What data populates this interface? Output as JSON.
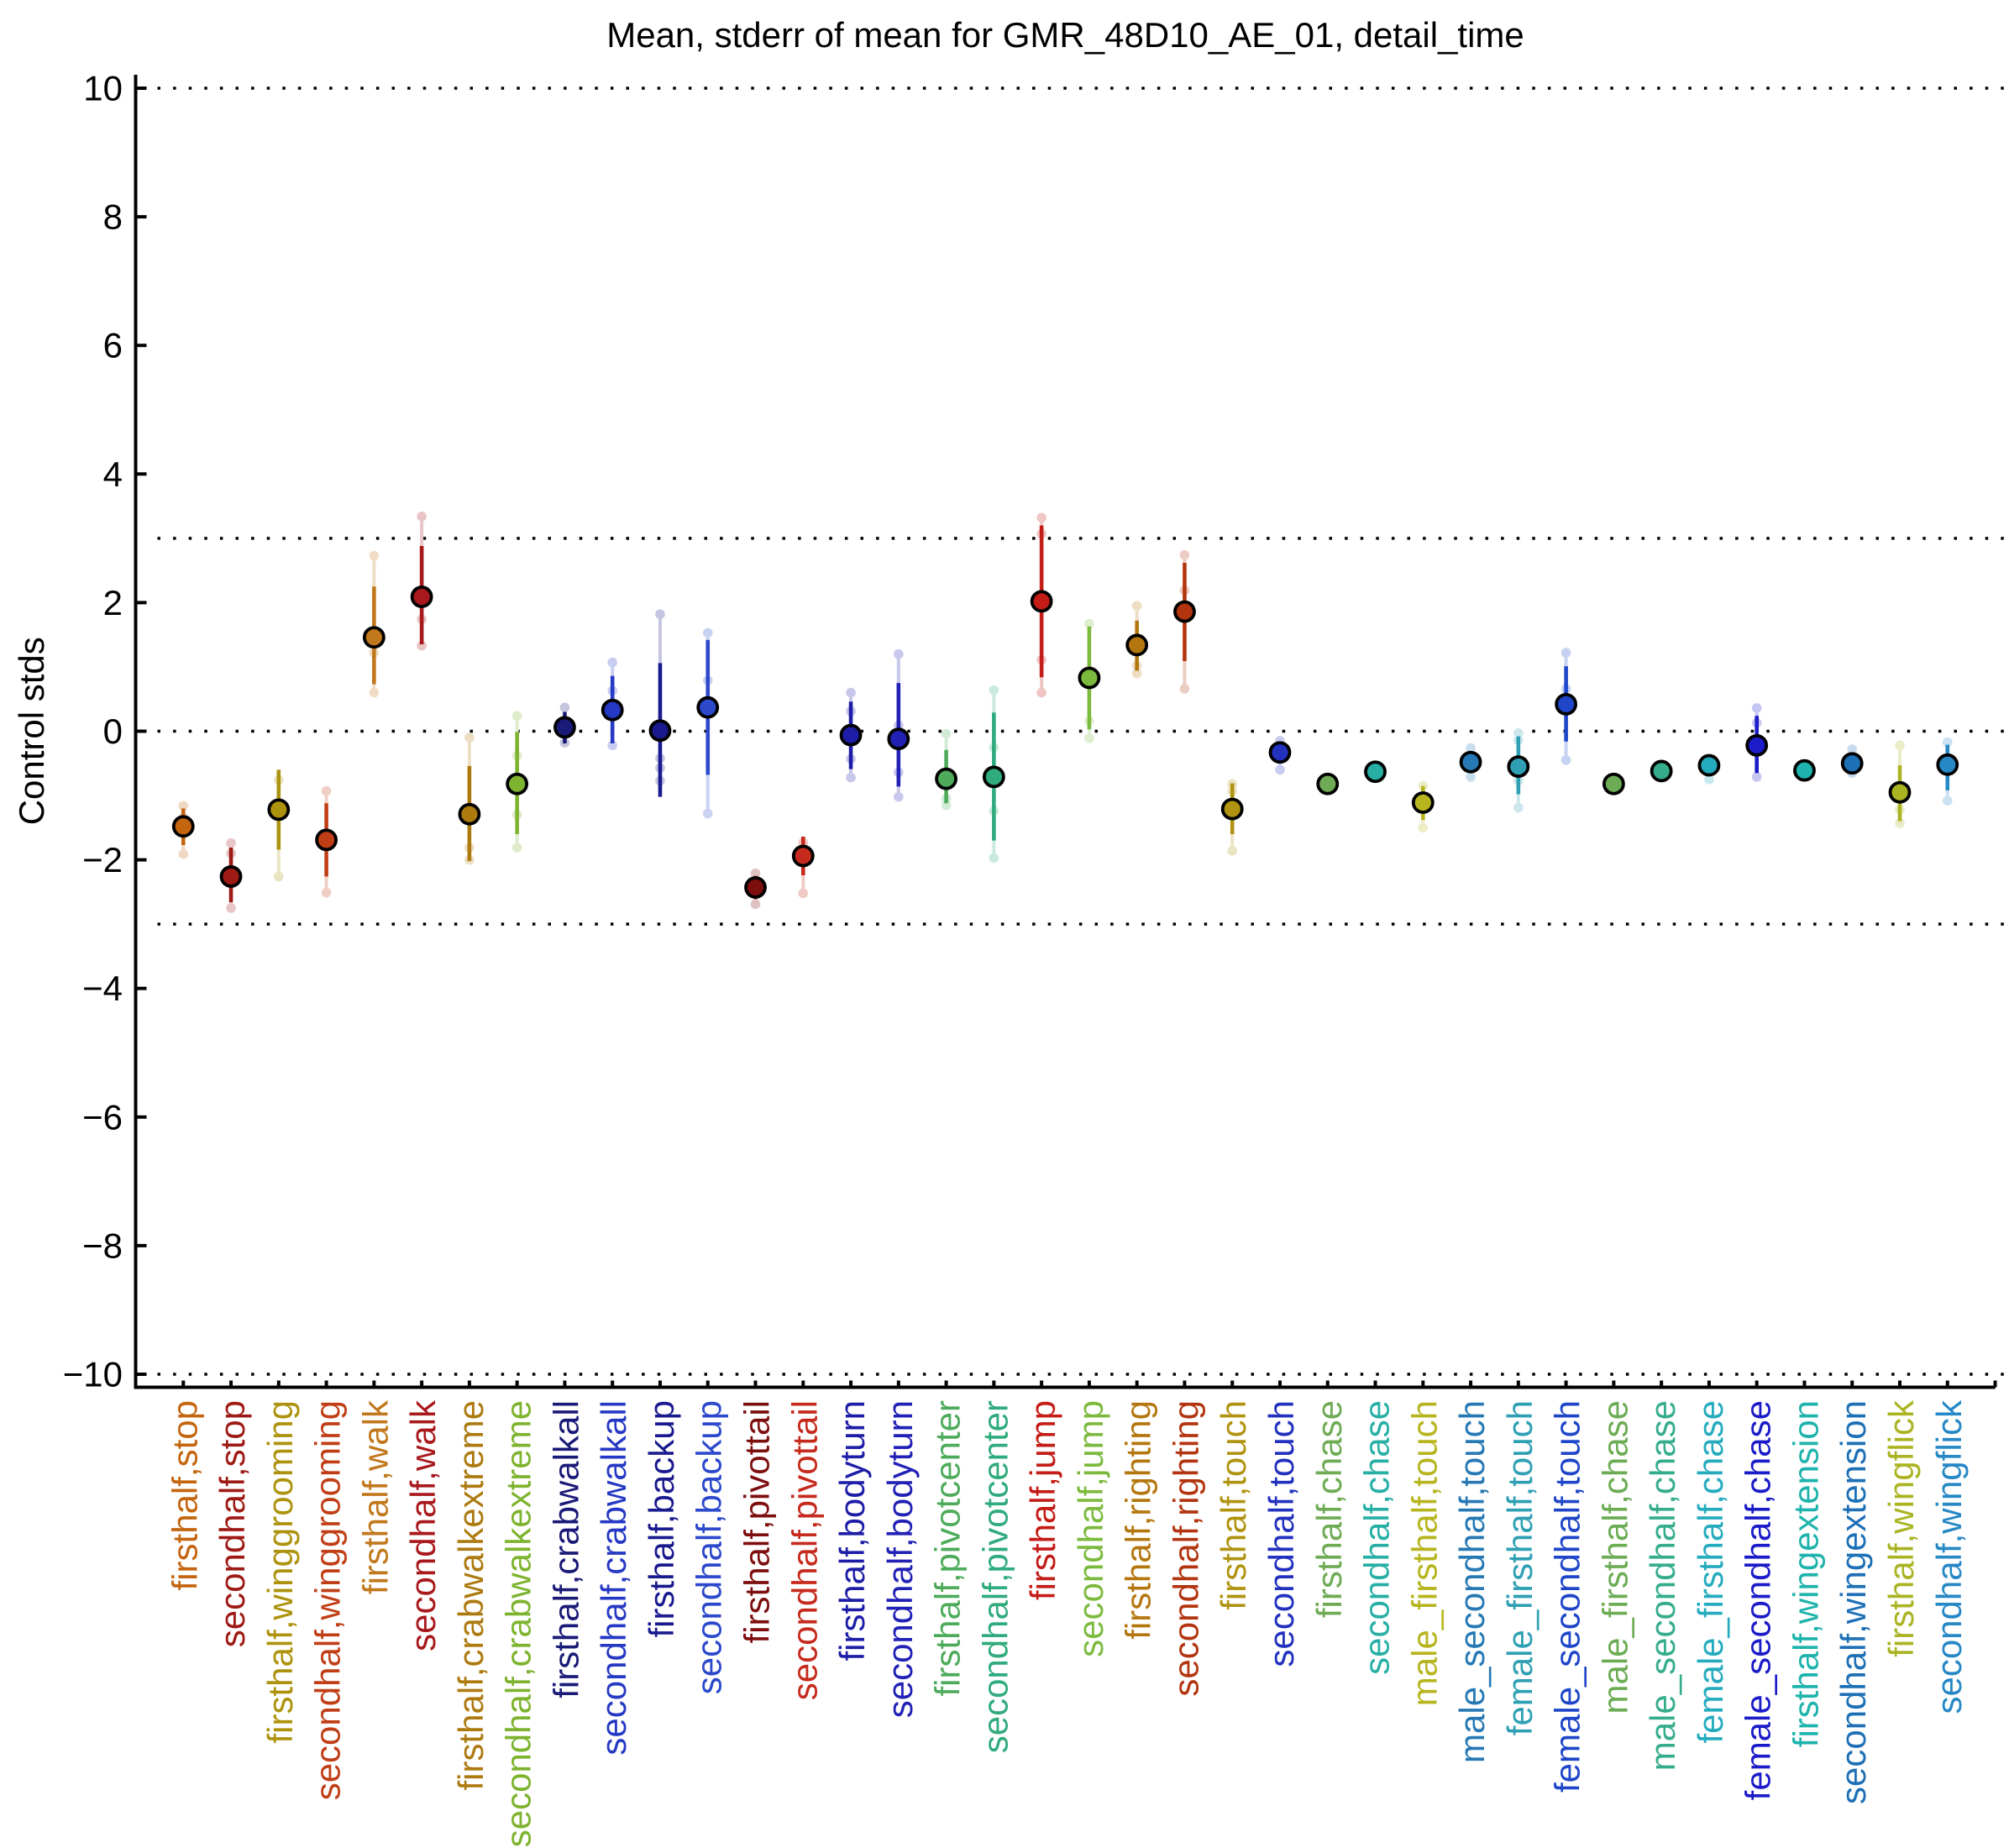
{
  "chart_data": {
    "type": "scatter",
    "title": "Mean, stderr of mean for GMR_48D10_AE_01, detail_time",
    "xlabel": "",
    "ylabel": "Control stds",
    "ylim": [
      -10.2,
      10.2
    ],
    "yticks": [
      -10,
      -8,
      -6,
      -4,
      -2,
      0,
      2,
      4,
      6,
      8,
      10
    ],
    "ytick_labels": [
      "−10",
      "−8",
      "−6",
      "−4",
      "−2",
      "0",
      "2",
      "4",
      "6",
      "8",
      "10"
    ],
    "grid_y_values": [
      10,
      3,
      0,
      -3,
      -10
    ],
    "grid_style": "dotted",
    "legend": "none",
    "axis_color": "#000000",
    "background_color": "#ffffff",
    "marker_edge_color": "#000000",
    "series_note": "Each category shows: big dot = mean, thick line = mean +/- stderr of mean, pale line and pale small dots = per-set means range",
    "categories": [
      {
        "label": "firsthalf,stop",
        "color": "#C4650F",
        "mean": -1.48,
        "stderr_hi": -1.2,
        "stderr_lo": -1.77,
        "ext_hi": -1.16,
        "ext_lo": -1.91,
        "set_means": [
          -1.16,
          -1.34,
          -1.91
        ]
      },
      {
        "label": "secondhalf,stop",
        "color": "#9E1A15",
        "mean": -2.26,
        "stderr_hi": -1.81,
        "stderr_lo": -2.66,
        "ext_hi": -1.74,
        "ext_lo": -2.75,
        "set_means": [
          -1.74,
          -1.9,
          -2.75
        ]
      },
      {
        "label": "firsthalf,winggrooming",
        "color": "#AD930D",
        "mean": -1.22,
        "stderr_hi": -0.6,
        "stderr_lo": -1.84,
        "ext_hi": -0.76,
        "ext_lo": -2.26,
        "set_means": [
          -0.76,
          -2.26
        ]
      },
      {
        "label": "secondhalf,winggrooming",
        "color": "#C03E16",
        "mean": -1.69,
        "stderr_hi": -1.12,
        "stderr_lo": -2.26,
        "ext_hi": -0.93,
        "ext_lo": -2.51,
        "set_means": [
          -0.93,
          -2.51
        ]
      },
      {
        "label": "firsthalf,walk",
        "color": "#C1771B",
        "mean": 1.46,
        "stderr_hi": 2.25,
        "stderr_lo": 0.73,
        "ext_hi": 2.73,
        "ext_lo": 0.6,
        "set_means": [
          2.73,
          1.22,
          0.6
        ]
      },
      {
        "label": "secondhalf,walk",
        "color": "#A8181C",
        "mean": 2.09,
        "stderr_hi": 2.88,
        "stderr_lo": 1.35,
        "ext_hi": 3.34,
        "ext_lo": 1.33,
        "set_means": [
          3.34,
          1.74,
          1.33
        ]
      },
      {
        "label": "firsthalf,crabwalkextreme",
        "color": "#AD7A10",
        "mean": -1.29,
        "stderr_hi": -0.54,
        "stderr_lo": -2.02,
        "ext_hi": -0.1,
        "ext_lo": -2.0,
        "set_means": [
          -0.1,
          -1.81,
          -2.0
        ]
      },
      {
        "label": "secondhalf,crabwalkextreme",
        "color": "#7DB32E",
        "mean": -0.82,
        "stderr_hi": -0.01,
        "stderr_lo": -1.6,
        "ext_hi": 0.24,
        "ext_lo": -1.81,
        "set_means": [
          0.24,
          -0.38,
          -1.3,
          -1.81
        ]
      },
      {
        "label": "firsthalf,crabwalkall",
        "color": "#1A1A78",
        "mean": 0.06,
        "stderr_hi": 0.3,
        "stderr_lo": -0.19,
        "ext_hi": 0.37,
        "ext_lo": -0.18,
        "set_means": [
          0.37,
          -0.18
        ]
      },
      {
        "label": "secondhalf,crabwalkall",
        "color": "#2639C4",
        "mean": 0.33,
        "stderr_hi": 0.86,
        "stderr_lo": -0.19,
        "ext_hi": 1.07,
        "ext_lo": -0.22,
        "set_means": [
          1.07,
          0.63,
          -0.22
        ]
      },
      {
        "label": "firsthalf,backup",
        "color": "#1A1A8F",
        "mean": 0.01,
        "stderr_hi": 1.06,
        "stderr_lo": -1.02,
        "ext_hi": 1.82,
        "ext_lo": -0.77,
        "set_means": [
          1.82,
          -0.42,
          -0.57,
          -0.77
        ]
      },
      {
        "label": "secondhalf,backup",
        "color": "#2C49CC",
        "mean": 0.37,
        "stderr_hi": 1.42,
        "stderr_lo": -0.68,
        "ext_hi": 1.53,
        "ext_lo": -1.28,
        "set_means": [
          1.53,
          0.79,
          -1.28
        ]
      },
      {
        "label": "firsthalf,pivottail",
        "color": "#7D0E0E",
        "mean": -2.43,
        "stderr_hi": -2.25,
        "stderr_lo": -2.61,
        "ext_hi": -2.21,
        "ext_lo": -2.69,
        "set_means": [
          -2.21,
          -2.69
        ]
      },
      {
        "label": "secondhalf,pivottail",
        "color": "#C52A1C",
        "mean": -1.94,
        "stderr_hi": -1.64,
        "stderr_lo": -2.24,
        "ext_hi": -1.73,
        "ext_lo": -2.52,
        "set_means": [
          -1.73,
          -2.52
        ]
      },
      {
        "label": "firsthalf,bodyturn",
        "color": "#1D1DA8",
        "mean": -0.06,
        "stderr_hi": 0.46,
        "stderr_lo": -0.59,
        "ext_hi": 0.6,
        "ext_lo": -0.72,
        "set_means": [
          0.6,
          0.31,
          -0.43,
          -0.72
        ]
      },
      {
        "label": "secondhalf,bodyturn",
        "color": "#2121B6",
        "mean": -0.12,
        "stderr_hi": 0.75,
        "stderr_lo": -0.86,
        "ext_hi": 1.2,
        "ext_lo": -1.02,
        "set_means": [
          1.2,
          0.09,
          -0.64,
          -1.02
        ]
      },
      {
        "label": "firsthalf,pivotcenter",
        "color": "#4DAB5B",
        "mean": -0.74,
        "stderr_hi": -0.29,
        "stderr_lo": -1.12,
        "ext_hi": -0.04,
        "ext_lo": -1.15,
        "set_means": [
          -0.04,
          -1.05,
          -1.15
        ]
      },
      {
        "label": "secondhalf,pivotcenter",
        "color": "#30AB7D",
        "mean": -0.71,
        "stderr_hi": 0.29,
        "stderr_lo": -1.7,
        "ext_hi": 0.64,
        "ext_lo": -1.97,
        "set_means": [
          0.64,
          -0.25,
          -1.24,
          -1.97
        ]
      },
      {
        "label": "firsthalf,jump",
        "color": "#C41C17",
        "mean": 2.02,
        "stderr_hi": 3.2,
        "stderr_lo": 0.84,
        "ext_hi": 3.32,
        "ext_lo": 0.6,
        "set_means": [
          3.32,
          3.07,
          1.11,
          0.6
        ]
      },
      {
        "label": "secondhalf,jump",
        "color": "#7CBA3E",
        "mean": 0.83,
        "stderr_hi": 1.63,
        "stderr_lo": 0.03,
        "ext_hi": 1.67,
        "ext_lo": -0.11,
        "set_means": [
          1.67,
          0.16,
          -0.11
        ]
      },
      {
        "label": "firsthalf,righting",
        "color": "#B4770F",
        "mean": 1.34,
        "stderr_hi": 1.72,
        "stderr_lo": 0.94,
        "ext_hi": 1.95,
        "ext_lo": 0.9,
        "set_means": [
          1.95,
          1.02,
          0.9
        ]
      },
      {
        "label": "secondhalf,righting",
        "color": "#B23510",
        "mean": 1.86,
        "stderr_hi": 2.62,
        "stderr_lo": 1.09,
        "ext_hi": 2.74,
        "ext_lo": 0.66,
        "set_means": [
          2.74,
          2.19,
          0.66
        ]
      },
      {
        "label": "firsthalf,touch",
        "color": "#B09310",
        "mean": -1.21,
        "stderr_hi": -0.81,
        "stderr_lo": -1.6,
        "ext_hi": -0.82,
        "ext_lo": -1.86,
        "set_means": [
          -0.82,
          -0.93,
          -1.86
        ]
      },
      {
        "label": "secondhalf,touch",
        "color": "#2231BE",
        "mean": -0.33,
        "stderr_hi": -0.19,
        "stderr_lo": -0.47,
        "ext_hi": -0.15,
        "ext_lo": -0.6,
        "set_means": [
          -0.15,
          -0.6
        ]
      },
      {
        "label": "firsthalf,chase",
        "color": "#6FAB55",
        "mean": -0.82,
        "stderr_hi": -0.74,
        "stderr_lo": -0.9,
        "ext_hi": -0.74,
        "ext_lo": -0.9,
        "set_means": [
          -0.74,
          -0.9
        ]
      },
      {
        "label": "secondhalf,chase",
        "color": "#27AFA5",
        "mean": -0.63,
        "stderr_hi": -0.55,
        "stderr_lo": -0.71,
        "ext_hi": -0.55,
        "ext_lo": -0.71,
        "set_means": [
          -0.55,
          -0.71
        ]
      },
      {
        "label": "male_firsthalf,touch",
        "color": "#B6B51E",
        "mean": -1.11,
        "stderr_hi": -0.85,
        "stderr_lo": -1.38,
        "ext_hi": -0.85,
        "ext_lo": -1.5,
        "set_means": [
          -0.85,
          -1.5
        ]
      },
      {
        "label": "male_secondhalf,touch",
        "color": "#2779B5",
        "mean": -0.48,
        "stderr_hi": -0.33,
        "stderr_lo": -0.63,
        "ext_hi": -0.26,
        "ext_lo": -0.71,
        "set_means": [
          -0.26,
          -0.71
        ]
      },
      {
        "label": "female_firsthalf,touch",
        "color": "#2FA0B4",
        "mean": -0.55,
        "stderr_hi": -0.08,
        "stderr_lo": -0.98,
        "ext_hi": -0.03,
        "ext_lo": -1.19,
        "set_means": [
          -0.03,
          -0.14,
          -0.77,
          -1.19
        ]
      },
      {
        "label": "female_secondhalf,touch",
        "color": "#1F46C9",
        "mean": 0.42,
        "stderr_hi": 1.01,
        "stderr_lo": -0.16,
        "ext_hi": 1.22,
        "ext_lo": -0.45,
        "set_means": [
          1.22,
          0.66,
          -0.45
        ]
      },
      {
        "label": "male_firsthalf,chase",
        "color": "#6CAC54",
        "mean": -0.82,
        "stderr_hi": -0.74,
        "stderr_lo": -0.9,
        "ext_hi": -0.74,
        "ext_lo": -0.9,
        "set_means": [
          -0.74,
          -0.9
        ]
      },
      {
        "label": "male_secondhalf,chase",
        "color": "#35AD8D",
        "mean": -0.62,
        "stderr_hi": -0.54,
        "stderr_lo": -0.7,
        "ext_hi": -0.54,
        "ext_lo": -0.7,
        "set_means": [
          -0.54,
          -0.7
        ]
      },
      {
        "label": "female_firsthalf,chase",
        "color": "#25ABBE",
        "mean": -0.53,
        "stderr_hi": -0.42,
        "stderr_lo": -0.64,
        "ext_hi": -0.45,
        "ext_lo": -0.75,
        "set_means": [
          -0.45,
          -0.75
        ]
      },
      {
        "label": "female_secondhalf,chase",
        "color": "#1B1BC9",
        "mean": -0.22,
        "stderr_hi": 0.24,
        "stderr_lo": -0.65,
        "ext_hi": 0.36,
        "ext_lo": -0.71,
        "set_means": [
          0.36,
          0.13,
          -0.71
        ]
      },
      {
        "label": "firsthalf,wingextension",
        "color": "#1EB3AC",
        "mean": -0.61,
        "stderr_hi": -0.53,
        "stderr_lo": -0.69,
        "ext_hi": -0.53,
        "ext_lo": -0.69,
        "set_means": [
          -0.53,
          -0.69
        ]
      },
      {
        "label": "secondhalf,wingextension",
        "color": "#1E70B6",
        "mean": -0.5,
        "stderr_hi": -0.38,
        "stderr_lo": -0.62,
        "ext_hi": -0.28,
        "ext_lo": -0.65,
        "set_means": [
          -0.28,
          -0.65
        ]
      },
      {
        "label": "firsthalf,wingflick",
        "color": "#AAB422",
        "mean": -0.95,
        "stderr_hi": -0.53,
        "stderr_lo": -1.4,
        "ext_hi": -0.22,
        "ext_lo": -1.43,
        "set_means": [
          -0.22,
          -1.22,
          -1.43
        ]
      },
      {
        "label": "secondhalf,wingflick",
        "color": "#2688C5",
        "mean": -0.52,
        "stderr_hi": -0.21,
        "stderr_lo": -0.92,
        "ext_hi": -0.17,
        "ext_lo": -1.08,
        "set_means": [
          -0.17,
          -1.08
        ]
      }
    ]
  }
}
